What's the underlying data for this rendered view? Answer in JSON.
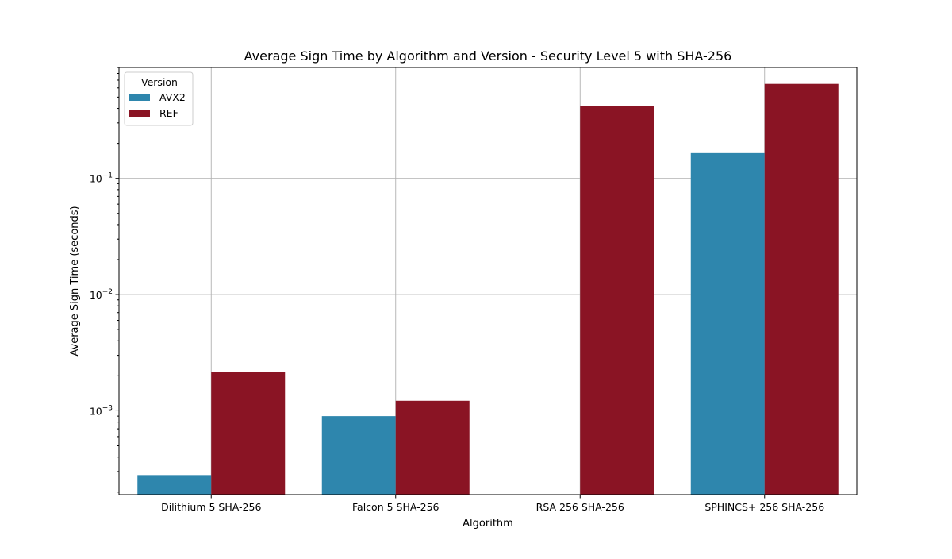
{
  "chart_data": {
    "type": "bar",
    "title": "Average Sign Time by Algorithm and Version - Security Level 5 with SHA-256",
    "xlabel": "Algorithm",
    "ylabel": "Average Sign Time (seconds)",
    "yscale": "log",
    "ylim": [
      0.00019,
      0.9
    ],
    "yticks": [
      0.001,
      0.01,
      0.1
    ],
    "ytick_labels": [
      {
        "base": "10",
        "exp": "−3"
      },
      {
        "base": "10",
        "exp": "−2"
      },
      {
        "base": "10",
        "exp": "−1"
      }
    ],
    "grid": true,
    "categories": [
      "Dilithium 5 SHA-256",
      "Falcon 5 SHA-256",
      "RSA 256 SHA-256",
      "SPHINCS+ 256 SHA-256"
    ],
    "series": [
      {
        "name": "AVX2",
        "color": "#2e86ad",
        "values": [
          0.00028,
          0.0009,
          null,
          0.165
        ]
      },
      {
        "name": "REF",
        "color": "#8a1424",
        "values": [
          0.00215,
          0.00122,
          0.42,
          0.65
        ]
      }
    ],
    "legend": {
      "title": "Version",
      "position": "top-left"
    }
  }
}
